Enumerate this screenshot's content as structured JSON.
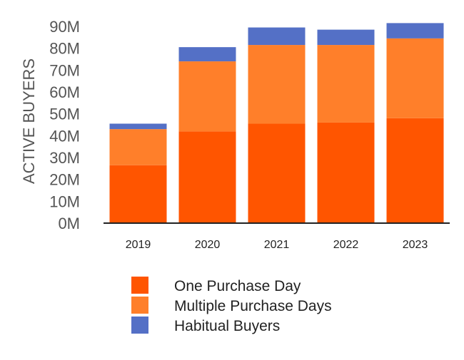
{
  "chart_data": {
    "type": "bar",
    "stacked": true,
    "title": "",
    "xlabel": "",
    "ylabel": "ACTIVE BUYERS",
    "ylim": [
      0,
      90
    ],
    "yunit_suffix": "M",
    "yticks": [
      "0M",
      "10M",
      "20M",
      "30M",
      "40M",
      "50M",
      "60M",
      "70M",
      "80M",
      "90M"
    ],
    "categories": [
      "2019",
      "2020",
      "2021",
      "2022",
      "2023"
    ],
    "series": [
      {
        "name": "One Purchase Day",
        "color": "#ff5500",
        "values": [
          26.5,
          42,
          45.5,
          46,
          48
        ]
      },
      {
        "name": "Multiple Purchase Days",
        "color": "#ff7f2a",
        "values": [
          16.5,
          32,
          36,
          35.5,
          36.5
        ]
      },
      {
        "name": "Habitual Buyers",
        "color": "#5470c6",
        "values": [
          2.5,
          6.5,
          8,
          7,
          7
        ]
      }
    ],
    "legend_position": "bottom"
  }
}
